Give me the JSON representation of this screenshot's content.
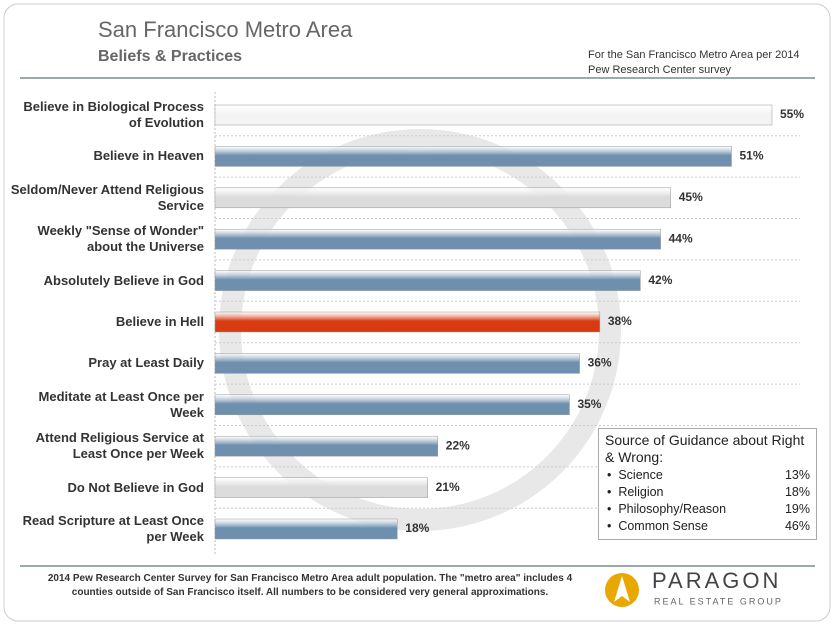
{
  "chart_data": {
    "type": "bar",
    "title": "San Francisco Metro Area",
    "subtitle": "Beliefs & Practices",
    "note": "For the San Francisco Metro Area per 2014 Pew Research Center survey",
    "categories": [
      "Believe in Biological Process of Evolution",
      "Believe in Heaven",
      "Seldom/Never Attend Religious Service",
      "Weekly \"Sense of Wonder\" about the Universe",
      "Absolutely Believe in God",
      "Believe in Hell",
      "Pray at Least Daily",
      "Meditate at Least Once per Week",
      "Attend Religious Service at Least Once per Week",
      "Do Not Believe in God",
      "Read Scripture at Least Once per Week"
    ],
    "values": [
      55,
      51,
      45,
      44,
      42,
      38,
      36,
      35,
      22,
      21,
      18
    ],
    "value_labels": [
      "55%",
      "51%",
      "45%",
      "44%",
      "42%",
      "38%",
      "36%",
      "35%",
      "22%",
      "21%",
      "18%"
    ],
    "colors": [
      "#f4f4f4",
      "#6f8fae",
      "#dcdcdc",
      "#6f8fae",
      "#6f8fae",
      "#d83a12",
      "#6f8fae",
      "#6f8fae",
      "#6f8fae",
      "#dcdcdc",
      "#6f8fae"
    ],
    "inset": {
      "title": "Source of Guidance about Right & Wrong:",
      "rows": [
        [
          "Science",
          "13%"
        ],
        [
          "Religion",
          "18%"
        ],
        [
          "Philosophy/Reason",
          "19%"
        ],
        [
          "Common Sense",
          "46%"
        ]
      ]
    },
    "footnote": "2014 Pew Research Center Survey for San Francisco Metro Area adult population. The \"metro area\" includes 4 counties outside of San Francisco itself. All numbers to be considered very general approximations.",
    "logo": {
      "name": "PARAGON",
      "tagline": "REAL ESTATE GROUP"
    }
  }
}
